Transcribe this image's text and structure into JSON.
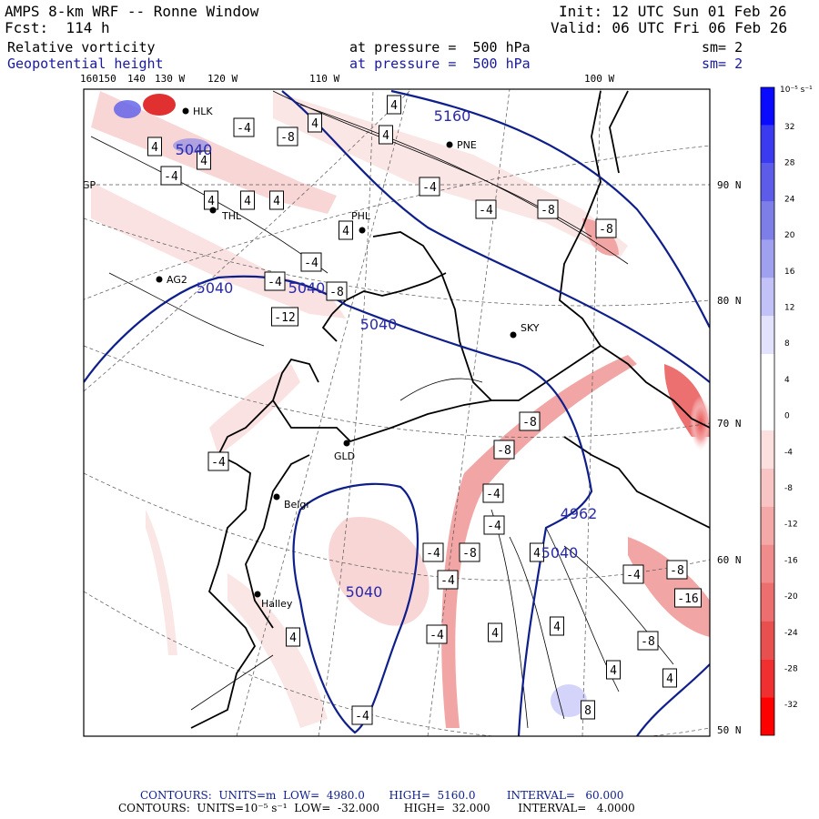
{
  "header": {
    "line1_left": "AMPS 8-km WRF -- Ronne Window",
    "line2_left": "Fcst:  114 h",
    "line1_right": "Init: 12 UTC Sun 01 Feb 26",
    "line2_right": "Valid: 06 UTC Fri 06 Feb 26",
    "field1": {
      "name": "Relative vorticity",
      "level": "at pressure =  500 hPa",
      "sm": "sm= 2"
    },
    "field2": {
      "name": "Geopotential height",
      "level": "at pressure =  500 hPa",
      "sm": "sm= 2"
    }
  },
  "longitude_labels": [
    "160150",
    "140",
    "130 W",
    "120 W",
    "110 W",
    "100 W"
  ],
  "latitude_labels": [
    "90 N",
    "80 N",
    "70 N",
    "60 N",
    "50 N"
  ],
  "stations": [
    "HLK",
    "PNE",
    "GP",
    "THL",
    "PHL",
    "AG2",
    "SKY",
    "GLD",
    "Belgr",
    "Halley"
  ],
  "height_labels": [
    "5160",
    "5040",
    "5040",
    "5040",
    "5040",
    "5040",
    "4962",
    "5040"
  ],
  "vorticity_labels": [
    "4",
    "-4",
    "-8",
    "4",
    "4",
    "4",
    "4",
    "-4",
    "4",
    "4",
    "4",
    "-4",
    "-8",
    "-8",
    "-4",
    "-4",
    "-4",
    "4",
    "-8",
    "-12",
    "-8",
    "-8",
    "-4",
    "-4",
    "-4",
    "-8",
    "-4",
    "4",
    "4",
    "-8",
    "-16",
    "-4",
    "-8",
    "4",
    "4",
    "-4",
    "8",
    "4",
    "-4",
    "-4",
    "4"
  ],
  "colorbar": {
    "unit": "10⁻⁵ s⁻¹",
    "labels": [
      "32",
      "28",
      "24",
      "20",
      "16",
      "12",
      "8",
      "4",
      "0",
      "-4",
      "-8",
      "-12",
      "-16",
      "-20",
      "-24",
      "-28",
      "-32"
    ],
    "colors": [
      "#0a0aff",
      "#3a3af0",
      "#5c5ce8",
      "#7e7ee8",
      "#a0a0f0",
      "#c2c2f8",
      "#e2e2fc",
      "#ffffff",
      "#ffffff",
      "#fce0e0",
      "#f8c4c4",
      "#f4a8a8",
      "#f08c8c",
      "#ec6e6e",
      "#e85050",
      "#f03030",
      "#ff0000"
    ]
  },
  "footer": {
    "line1": "CONTOURS:  UNITS=m  LOW=  4980.0       HIGH=  5160.0         INTERVAL=   60.000",
    "line2": "CONTOURS:  UNITS=10⁻⁵ s⁻¹  LOW=  -32.000       HIGH=  32.000        INTERVAL=   4.0000"
  }
}
